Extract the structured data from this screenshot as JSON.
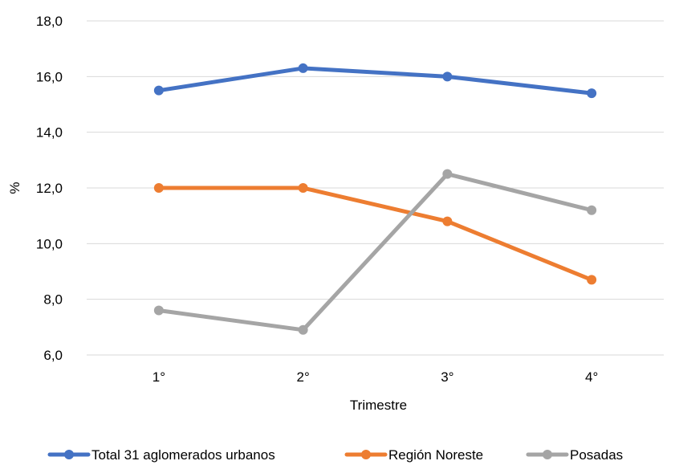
{
  "chart_data": {
    "type": "line",
    "title": "",
    "xlabel": "Trimestre",
    "ylabel": "%",
    "categories": [
      "1°",
      "2°",
      "3°",
      "4°"
    ],
    "ylim": [
      6.0,
      18.0
    ],
    "yticks": [
      "6,0",
      "8,0",
      "10,0",
      "12,0",
      "14,0",
      "16,0",
      "18,0"
    ],
    "grid": true,
    "legend_position": "bottom",
    "series": [
      {
        "name": "Total 31 aglomerados urbanos",
        "color": "#4472c4",
        "values": [
          15.5,
          16.3,
          16.0,
          15.4
        ]
      },
      {
        "name": "Región Noreste",
        "color": "#ed7d31",
        "values": [
          12.0,
          12.0,
          10.8,
          8.7
        ]
      },
      {
        "name": "Posadas",
        "color": "#a5a5a5",
        "values": [
          7.6,
          6.9,
          12.5,
          11.2
        ]
      }
    ]
  }
}
